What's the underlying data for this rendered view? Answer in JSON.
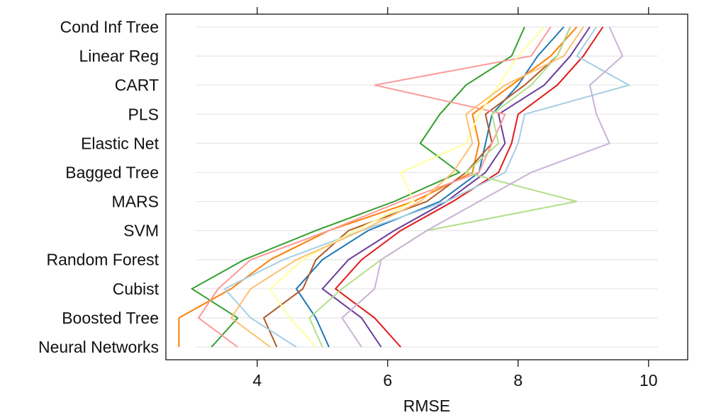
{
  "chart_data": {
    "type": "line",
    "title": "",
    "xlabel": "RMSE",
    "ylabel": "",
    "xlim": [
      2.6,
      10.6
    ],
    "xticks": [
      4,
      6,
      8,
      10
    ],
    "grid": "horizontal",
    "categories": [
      "Neural Networks",
      "Boosted Tree",
      "Cubist",
      "Random Forest",
      "SVM",
      "MARS",
      "Bagged Tree",
      "Elastic Net",
      "PLS",
      "CART",
      "Linear Reg",
      "Cond Inf Tree"
    ],
    "series": [
      {
        "color": "#1f78b4",
        "values": [
          5.1,
          4.9,
          4.6,
          5.0,
          5.7,
          6.8,
          7.4,
          7.5,
          7.6,
          8.0,
          8.3,
          8.7
        ]
      },
      {
        "color": "#e31a1c",
        "values": [
          6.2,
          5.8,
          5.2,
          5.6,
          6.2,
          7.0,
          7.7,
          7.9,
          8.0,
          8.6,
          9.0,
          9.3
        ]
      },
      {
        "color": "#33a02c",
        "values": [
          3.3,
          3.7,
          3.0,
          3.8,
          4.9,
          6.1,
          7.1,
          6.5,
          6.8,
          7.2,
          7.9,
          8.1
        ]
      },
      {
        "color": "#ff7f00",
        "values": [
          2.8,
          2.8,
          3.6,
          4.2,
          5.1,
          6.4,
          7.3,
          7.4,
          7.3,
          7.9,
          8.5,
          8.9
        ]
      },
      {
        "color": "#6a3d9a",
        "values": [
          5.9,
          5.6,
          5.0,
          5.4,
          6.1,
          6.9,
          7.5,
          7.8,
          7.7,
          8.4,
          8.8,
          9.1
        ]
      },
      {
        "color": "#b15928",
        "values": [
          4.3,
          4.1,
          4.7,
          4.9,
          5.4,
          6.6,
          7.2,
          7.6,
          7.5,
          8.1,
          8.6,
          8.8
        ]
      },
      {
        "color": "#fb9a99",
        "values": [
          3.7,
          3.1,
          3.4,
          3.9,
          5.1,
          6.2,
          7.4,
          7.6,
          7.8,
          5.8,
          8.2,
          8.5
        ]
      },
      {
        "color": "#a6cee3",
        "values": [
          4.6,
          3.9,
          3.5,
          4.4,
          5.6,
          6.9,
          7.8,
          8.0,
          8.1,
          9.7,
          8.9,
          9.2
        ]
      },
      {
        "color": "#b2df8a",
        "values": [
          5.0,
          4.8,
          5.3,
          5.9,
          6.6,
          8.9,
          7.2,
          7.7,
          7.6,
          8.2,
          8.6,
          8.8
        ]
      },
      {
        "color": "#cab2d6",
        "values": [
          5.6,
          5.3,
          5.8,
          5.9,
          6.6,
          7.4,
          8.2,
          9.4,
          9.2,
          9.1,
          9.6,
          9.4
        ]
      },
      {
        "color": "#ffff99",
        "values": [
          4.9,
          4.5,
          4.2,
          4.7,
          5.5,
          6.4,
          6.2,
          7.2,
          7.4,
          7.7,
          8.0,
          8.4
        ]
      },
      {
        "color": "#fdbf6f",
        "values": [
          4.2,
          3.6,
          3.9,
          4.6,
          5.6,
          6.5,
          7.0,
          7.3,
          7.2,
          7.8,
          8.7,
          9.0
        ]
      }
    ]
  }
}
